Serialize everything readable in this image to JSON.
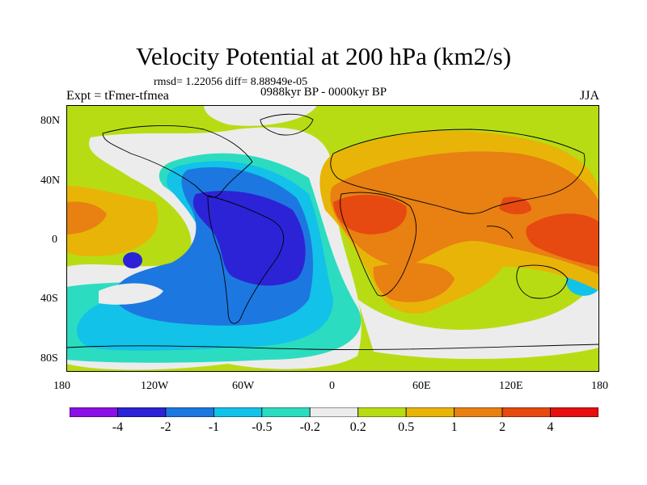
{
  "title": "Velocity Potential at 200 hPa (km2/s)",
  "stats_line": "rmsd= 1.22056 diff= 8.88949e-05",
  "experiment": "Expt = tFmer-tfmea",
  "period": "0988kyr BP - 0000kyr BP",
  "season": "JJA",
  "axes": {
    "lon_ticks": [
      "180",
      "120W",
      "60W",
      "0",
      "60E",
      "120E",
      "180"
    ],
    "lat_ticks": [
      "80N",
      "40N",
      "0",
      "40S",
      "80S"
    ]
  },
  "colorbar": {
    "labels": [
      "-4",
      "-2",
      "-1",
      "-0.5",
      "-0.2",
      "0.2",
      "0.5",
      "1",
      "2",
      "4"
    ],
    "colors": [
      "#8a10e6",
      "#2c23d6",
      "#1c78e0",
      "#12c2e8",
      "#2cdcc0",
      "#ececec",
      "#b8dc14",
      "#e8b408",
      "#e88012",
      "#e64a10",
      "#e61010"
    ]
  },
  "palette": {
    "strong_negative": "#2c23d6",
    "negative": "#1c78e0",
    "weak_negative": "#12c2e8",
    "slight_negative": "#2cdcc0",
    "near_zero": "#ececec",
    "slight_positive": "#b8dc14",
    "weak_positive": "#e8b408",
    "positive": "#e88012",
    "strong_positive": "#e64a10"
  }
}
